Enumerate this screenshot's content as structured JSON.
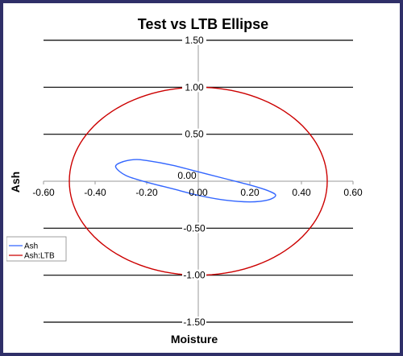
{
  "chart_data": {
    "type": "line",
    "title": "Test vs LTB Ellipse",
    "xlabel": "Moisture",
    "ylabel": "Ash",
    "xlim": [
      -0.6,
      0.6
    ],
    "ylim": [
      -1.5,
      1.5
    ],
    "x_ticks": [
      -0.6,
      -0.4,
      -0.2,
      0.0,
      0.2,
      0.4,
      0.6
    ],
    "y_ticks": [
      -1.5,
      -1.0,
      -0.5,
      0.0,
      0.5,
      1.0,
      1.5
    ],
    "x_tick_labels": [
      "-0.60",
      "-0.40",
      "-0.20",
      "0.00",
      "0.20",
      "0.40",
      "0.60"
    ],
    "y_tick_labels": [
      "-1.50",
      "-1.00",
      "-0.50",
      "0.00",
      "0.50",
      "1.00",
      "1.50"
    ],
    "grid": "horizontal",
    "legend_position": "left",
    "series": [
      {
        "name": "Ash",
        "color": "#3366ff",
        "shape": "ellipse",
        "center": [
          0.0,
          0.0
        ],
        "points": [
          [
            -0.32,
            0.15
          ],
          [
            -0.3,
            0.2
          ],
          [
            -0.25,
            0.23
          ],
          [
            -0.2,
            0.22
          ],
          [
            -0.1,
            0.17
          ],
          [
            0.0,
            0.1
          ],
          [
            0.1,
            0.03
          ],
          [
            0.2,
            -0.04
          ],
          [
            0.27,
            -0.1
          ],
          [
            0.3,
            -0.15
          ],
          [
            0.27,
            -0.2
          ],
          [
            0.2,
            -0.22
          ],
          [
            0.1,
            -0.2
          ],
          [
            0.0,
            -0.15
          ],
          [
            -0.1,
            -0.08
          ],
          [
            -0.2,
            -0.01
          ],
          [
            -0.28,
            0.06
          ],
          [
            -0.32,
            0.15
          ]
        ]
      },
      {
        "name": "Ash:LTB",
        "color": "#cc0000",
        "shape": "ellipse",
        "center": [
          0.0,
          0.0
        ],
        "semi_axis_x": 0.5,
        "semi_axis_y": 1.0
      }
    ]
  }
}
